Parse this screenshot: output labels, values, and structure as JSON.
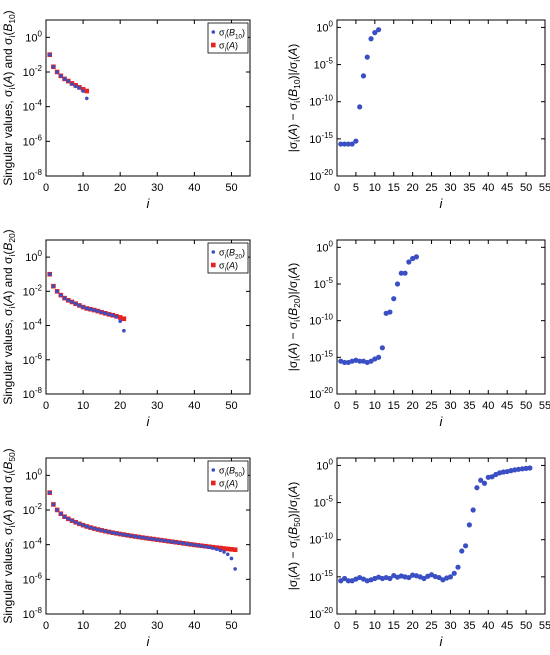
{
  "colors": {
    "blue": "#3a4fc4",
    "red": "#e8221e",
    "axis": "#000000"
  },
  "chart_data": [
    {
      "type": "scatter",
      "yscale": "log",
      "xlabel": "i",
      "ylabel": "Singular values, σi(A) and σi(B10)",
      "xlim": [
        0,
        55
      ],
      "ylim_exp": [
        -8,
        1
      ],
      "xticks": [
        0,
        10,
        20,
        30,
        40,
        50
      ],
      "yticks_exp": [
        -8,
        -6,
        -4,
        -2,
        0
      ],
      "legend_position": "top-right",
      "legend": [
        {
          "base": "σi(B10)",
          "marker": "dot"
        },
        {
          "base": "σi(A)",
          "marker": "square"
        }
      ],
      "series": [
        {
          "name": "σi(B10)",
          "marker": "dot",
          "color": "blue",
          "x": [
            1,
            2,
            3,
            4,
            5,
            6,
            7,
            8,
            9,
            10,
            11
          ],
          "y": [
            0.1,
            0.02,
            0.01,
            0.006,
            0.004,
            0.003,
            0.002,
            0.0015,
            0.0012,
            0.0008,
            0.0003
          ]
        },
        {
          "name": "σi(A)",
          "marker": "square",
          "color": "red",
          "x": [
            1,
            2,
            3,
            4,
            5,
            6,
            7,
            8,
            9,
            10,
            11
          ],
          "y": [
            0.1,
            0.02,
            0.01,
            0.006,
            0.004,
            0.003,
            0.0022,
            0.0017,
            0.0013,
            0.001,
            0.0008
          ]
        }
      ]
    },
    {
      "type": "scatter",
      "yscale": "log",
      "xlabel": "i",
      "ylabel": "|σi(A) − σi(B10)|/σi(A)",
      "xlim": [
        0,
        55
      ],
      "ylim_exp": [
        -20,
        1
      ],
      "xticks": [
        0,
        5,
        10,
        15,
        20,
        25,
        30,
        35,
        40,
        45,
        50,
        55
      ],
      "yticks_exp": [
        -20,
        -15,
        -10,
        -5,
        0
      ],
      "series": [
        {
          "name": "",
          "marker": "dot",
          "color": "blue",
          "x": [
            1,
            2,
            3,
            4,
            5,
            6,
            7,
            8,
            9,
            10,
            11
          ],
          "y": [
            2e-16,
            2e-16,
            2e-16,
            2e-16,
            5e-16,
            2e-11,
            3e-07,
            0.0001,
            0.03,
            0.2,
            0.5
          ]
        }
      ]
    },
    {
      "type": "scatter",
      "yscale": "log",
      "xlabel": "i",
      "ylabel": "Singular values, σi(A) and σi(B20)",
      "xlim": [
        0,
        55
      ],
      "ylim_exp": [
        -8,
        1
      ],
      "xticks": [
        0,
        10,
        20,
        30,
        40,
        50
      ],
      "yticks_exp": [
        -8,
        -6,
        -4,
        -2,
        0
      ],
      "legend_position": "top-right",
      "legend": [
        {
          "base": "σi(B20)",
          "marker": "dot"
        },
        {
          "base": "σi(A)",
          "marker": "square"
        }
      ],
      "series": [
        {
          "name": "σi(B20)",
          "marker": "dot",
          "color": "blue",
          "x": [
            1,
            2,
            3,
            4,
            5,
            6,
            7,
            8,
            9,
            10,
            11,
            12,
            13,
            14,
            15,
            16,
            17,
            18,
            19,
            20,
            21
          ],
          "y": [
            0.1,
            0.02,
            0.01,
            0.006,
            0.004,
            0.003,
            0.0024,
            0.0019,
            0.0015,
            0.0012,
            0.001,
            0.0009,
            0.0008,
            0.0007,
            0.0006,
            0.00052,
            0.00045,
            0.0004,
            0.00032,
            0.00018,
            5e-05
          ]
        },
        {
          "name": "σi(A)",
          "marker": "square",
          "color": "red",
          "x": [
            1,
            2,
            3,
            4,
            5,
            6,
            7,
            8,
            9,
            10,
            11,
            12,
            13,
            14,
            15,
            16,
            17,
            18,
            19,
            20,
            21
          ],
          "y": [
            0.1,
            0.02,
            0.01,
            0.006,
            0.004,
            0.003,
            0.0024,
            0.0019,
            0.0015,
            0.0012,
            0.001,
            0.0009,
            0.0008,
            0.0007,
            0.0006,
            0.00052,
            0.00045,
            0.0004,
            0.00035,
            0.0003,
            0.00025
          ]
        }
      ]
    },
    {
      "type": "scatter",
      "yscale": "log",
      "xlabel": "i",
      "ylabel": "|σi(A) − σi(B20)|/σi(A)",
      "xlim": [
        0,
        55
      ],
      "ylim_exp": [
        -20,
        1
      ],
      "xticks": [
        0,
        5,
        10,
        15,
        20,
        25,
        30,
        35,
        40,
        45,
        50,
        55
      ],
      "yticks_exp": [
        -20,
        -15,
        -10,
        -5,
        0
      ],
      "series": [
        {
          "name": "",
          "marker": "dot",
          "color": "blue",
          "x": [
            1,
            2,
            3,
            4,
            5,
            6,
            7,
            8,
            9,
            10,
            11,
            12,
            13,
            14,
            15,
            16,
            17,
            18,
            19,
            20,
            21
          ],
          "y": [
            3e-16,
            2e-16,
            2e-16,
            3e-16,
            4e-16,
            3e-16,
            3e-16,
            2e-16,
            3e-16,
            6e-16,
            1e-15,
            2e-14,
            1e-09,
            1.5e-09,
            1e-07,
            1e-05,
            0.0003,
            0.0003,
            0.01,
            0.03,
            0.05
          ]
        }
      ]
    },
    {
      "type": "scatter",
      "yscale": "log",
      "xlabel": "i",
      "ylabel": "Singular values, σi(A) and σi(B50)",
      "xlim": [
        0,
        55
      ],
      "ylim_exp": [
        -8,
        1
      ],
      "xticks": [
        0,
        10,
        20,
        30,
        40,
        50
      ],
      "yticks_exp": [
        -8,
        -6,
        -4,
        -2,
        0
      ],
      "legend_position": "top-right",
      "legend": [
        {
          "base": "σi(B50)",
          "marker": "dot"
        },
        {
          "base": "σi(A)",
          "marker": "square"
        }
      ],
      "series": [
        {
          "name": "σi(B50)",
          "marker": "dot",
          "color": "blue",
          "x": [
            1,
            2,
            3,
            4,
            5,
            6,
            7,
            8,
            9,
            10,
            11,
            12,
            13,
            14,
            15,
            16,
            17,
            18,
            19,
            20,
            21,
            22,
            23,
            24,
            25,
            26,
            27,
            28,
            29,
            30,
            31,
            32,
            33,
            34,
            35,
            36,
            37,
            38,
            39,
            40,
            41,
            42,
            43,
            44,
            45,
            46,
            47,
            48,
            49,
            50,
            51
          ],
          "y": [
            0.1,
            0.021,
            0.0101,
            0.0061,
            0.0041,
            0.0031,
            0.00244,
            0.00195,
            0.0016,
            0.00133,
            0.00112,
            0.00097,
            0.00085,
            0.00075,
            0.00067,
            0.0006,
            0.00054,
            0.00049,
            0.00045,
            0.00041,
            0.00038,
            0.000348,
            0.000322,
            0.000298,
            0.000277,
            0.000257,
            0.000239,
            0.000223,
            0.000209,
            0.000195,
            0.000182,
            0.00017,
            0.000158,
            0.000148,
            0.000138,
            0.000129,
            0.00012,
            0.000112,
            0.000104,
            9.65e-05,
            9e-05,
            8.3e-05,
            7.7e-05,
            7e-05,
            6.3e-05,
            5.5e-05,
            4.7e-05,
            3.8e-05,
            2.8e-05,
            1.6e-05,
            4e-06
          ]
        },
        {
          "name": "σi(A)",
          "marker": "square",
          "color": "red",
          "x": [
            1,
            2,
            3,
            4,
            5,
            6,
            7,
            8,
            9,
            10,
            11,
            12,
            13,
            14,
            15,
            16,
            17,
            18,
            19,
            20,
            21,
            22,
            23,
            24,
            25,
            26,
            27,
            28,
            29,
            30,
            31,
            32,
            33,
            34,
            35,
            36,
            37,
            38,
            39,
            40,
            41,
            42,
            43,
            44,
            45,
            46,
            47,
            48,
            49,
            50,
            51
          ],
          "y": [
            0.1,
            0.021,
            0.0101,
            0.0061,
            0.0041,
            0.0031,
            0.00244,
            0.00195,
            0.0016,
            0.00133,
            0.00112,
            0.00097,
            0.00085,
            0.00075,
            0.00067,
            0.0006,
            0.00054,
            0.00049,
            0.00045,
            0.00041,
            0.00038,
            0.000348,
            0.000322,
            0.000298,
            0.000277,
            0.000257,
            0.000239,
            0.000223,
            0.000209,
            0.000195,
            0.000182,
            0.00017,
            0.000158,
            0.000148,
            0.000138,
            0.000129,
            0.00012,
            0.000112,
            0.000104,
            9.75e-05,
            9.15e-05,
            8.6e-05,
            8.1e-05,
            7.6e-05,
            7.15e-05,
            6.75e-05,
            6.4e-05,
            6e-05,
            5.68e-05,
            5.38e-05,
            5.1e-05
          ]
        }
      ]
    },
    {
      "type": "scatter",
      "yscale": "log",
      "xlabel": "i",
      "ylabel": "|σi(A) − σi(B50)|/σi(A)",
      "xlim": [
        0,
        55
      ],
      "ylim_exp": [
        -20,
        1
      ],
      "xticks": [
        0,
        5,
        10,
        15,
        20,
        25,
        30,
        35,
        40,
        45,
        50,
        55
      ],
      "yticks_exp": [
        -20,
        -15,
        -10,
        -5,
        0
      ],
      "series": [
        {
          "name": "",
          "marker": "dot",
          "color": "blue",
          "x": [
            1,
            2,
            3,
            4,
            5,
            6,
            7,
            8,
            9,
            10,
            11,
            12,
            13,
            14,
            15,
            16,
            17,
            18,
            19,
            20,
            21,
            22,
            23,
            24,
            25,
            26,
            27,
            28,
            29,
            30,
            31,
            32,
            33,
            34,
            35,
            36,
            37,
            38,
            39,
            40,
            41,
            42,
            43,
            44,
            45,
            46,
            47,
            48,
            49,
            50,
            51
          ],
          "y": [
            3e-16,
            6e-16,
            3e-16,
            3e-16,
            5e-16,
            8e-16,
            5e-16,
            3e-16,
            4e-16,
            6e-16,
            9e-16,
            6e-16,
            8e-16,
            6e-16,
            1.5e-15,
            9e-16,
            1.3e-15,
            1e-15,
            8e-16,
            1.7e-15,
            1.4e-15,
            1e-15,
            6e-16,
            1.2e-15,
            1.9e-15,
            1.1e-15,
            8e-16,
            4e-16,
            7e-16,
            1e-15,
            3e-15,
            2e-14,
            3e-12,
            1.5e-11,
            1e-08,
            1e-06,
            0.001,
            0.01,
            0.004,
            0.025,
            0.03,
            0.06,
            0.1,
            0.13,
            0.15,
            0.2,
            0.25,
            0.3,
            0.35,
            0.4,
            0.45
          ]
        }
      ]
    }
  ]
}
